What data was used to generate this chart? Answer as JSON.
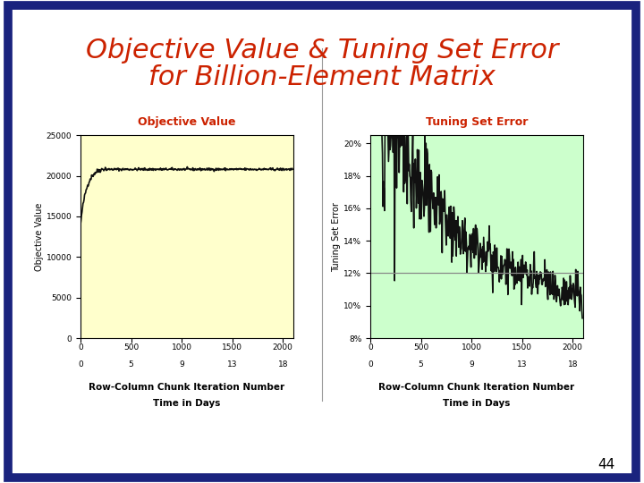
{
  "title_line1": "Objective Value & Tuning Set Error",
  "title_line2": "for Billion-Element Matrix",
  "title_color": "#CC2200",
  "title_fontsize": 22,
  "bg_color": "#FFFFFF",
  "border_color": "#1A237E",
  "slide_number": "44",
  "left_title": "Objective Value",
  "left_title_color": "#CC2200",
  "left_bg": "#FFFFCC",
  "left_ylabel": "Objective Value",
  "left_xlabel1": "Row-Column Chunk Iteration Number",
  "left_xlabel2": "Time in Days",
  "left_xticks": [
    0,
    500,
    1000,
    1500,
    2000
  ],
  "left_xtick2": [
    "0",
    "5",
    "9",
    "13",
    "18"
  ],
  "left_ylim": [
    0,
    25000
  ],
  "left_yticks": [
    0,
    5000,
    10000,
    15000,
    20000,
    25000
  ],
  "left_xlim": [
    0,
    2100
  ],
  "right_title": "Tuning Set Error",
  "right_title_color": "#CC2200",
  "right_bg": "#CCFFCC",
  "right_ylabel": "Tuning Set Error",
  "right_xlabel1": "Row-Column Chunk Iteration Number",
  "right_xlabel2": "Time in Days",
  "right_xticks": [
    0,
    500,
    1000,
    1500,
    2000
  ],
  "right_xtick2": [
    "0",
    "5",
    "9",
    "13",
    "18"
  ],
  "right_ylim": [
    0.08,
    0.205
  ],
  "right_yticks": [
    0.08,
    0.1,
    0.12,
    0.14,
    0.16,
    0.18,
    0.2
  ],
  "right_xlim": [
    0,
    2100
  ],
  "right_hline": 0.12,
  "line_color": "#111111",
  "line_width": 1.2
}
